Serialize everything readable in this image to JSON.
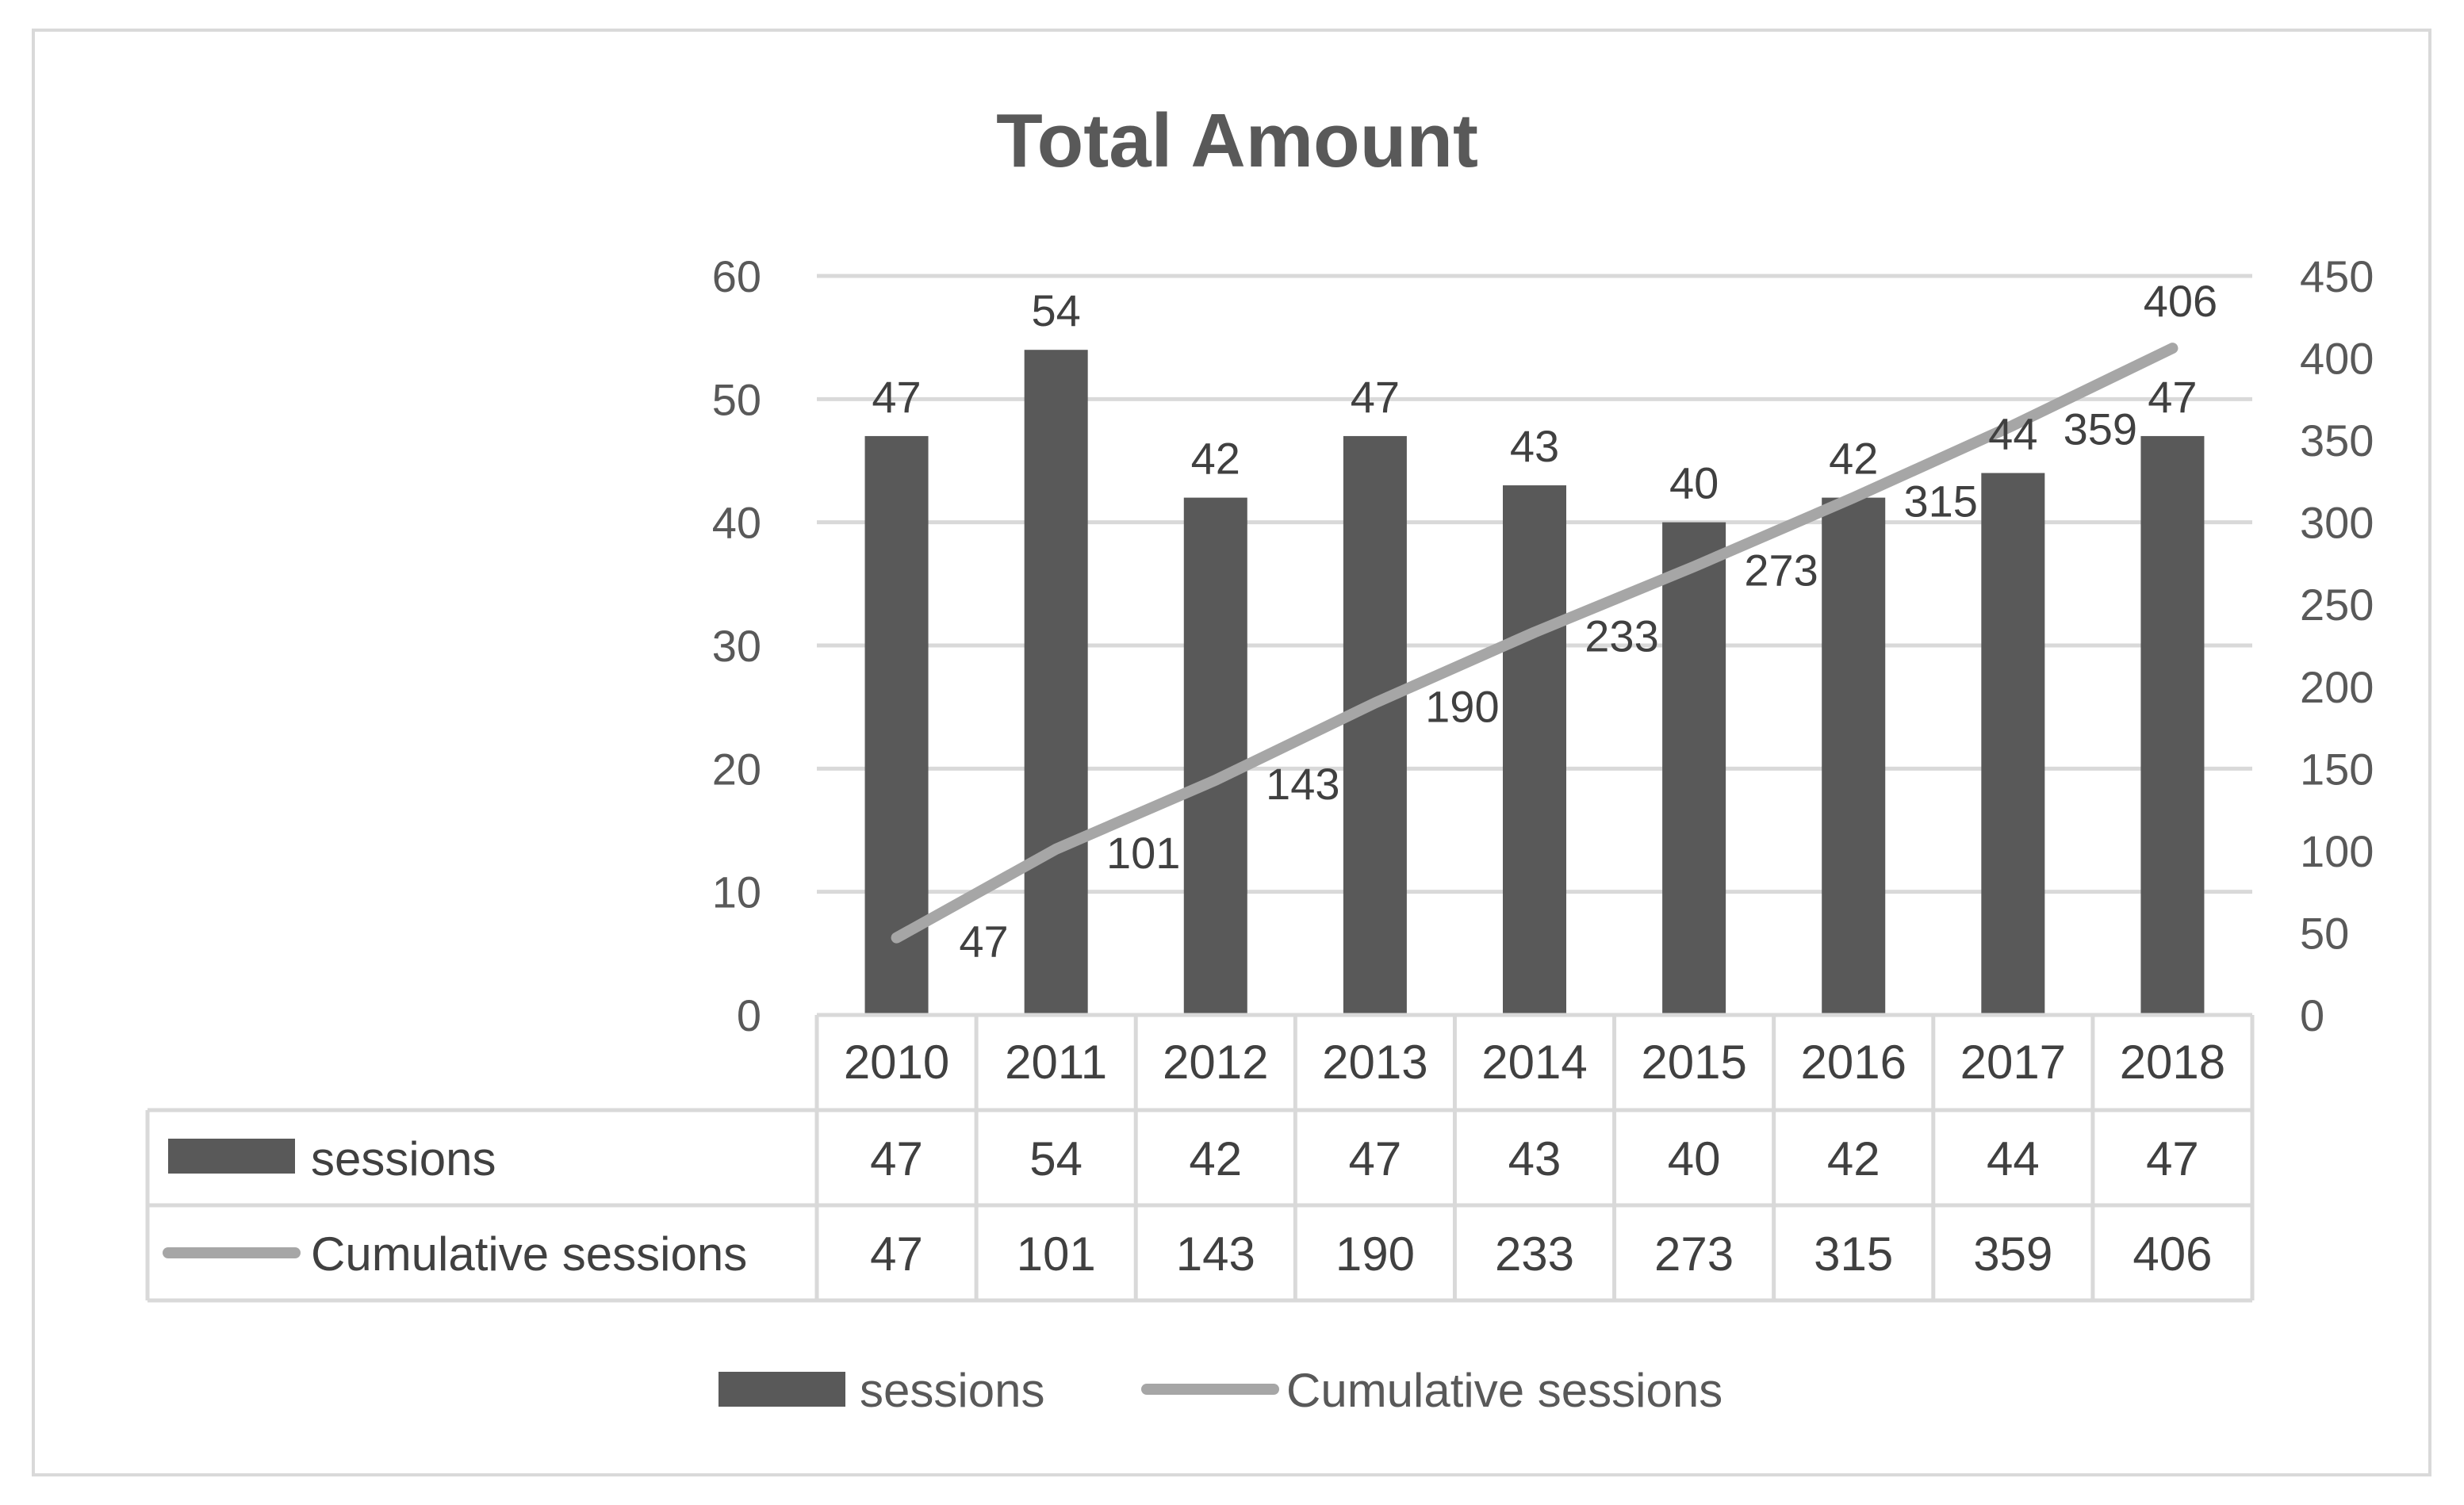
{
  "chart_data": {
    "type": "bar",
    "title": "Total Amount",
    "categories": [
      "2010",
      "2011",
      "2012",
      "2013",
      "2014",
      "2015",
      "2016",
      "2017",
      "2018"
    ],
    "series": [
      {
        "name": "sessions",
        "type": "bar",
        "axis": "left",
        "color": "#595959",
        "values": [
          47,
          54,
          42,
          47,
          43,
          40,
          42,
          44,
          47
        ]
      },
      {
        "name": "Cumulative sessions",
        "type": "line",
        "axis": "right",
        "color": "#a6a6a6",
        "values": [
          47,
          101,
          143,
          190,
          233,
          273,
          315,
          359,
          406
        ]
      }
    ],
    "ylim": [
      0,
      60
    ],
    "yticks": [
      0,
      10,
      20,
      30,
      40,
      50,
      60
    ],
    "y2lim": [
      0,
      450
    ],
    "y2ticks": [
      0,
      50,
      100,
      150,
      200,
      250,
      300,
      350,
      400,
      450
    ],
    "grid": true,
    "legend_position": "bottom",
    "data_table": true
  }
}
